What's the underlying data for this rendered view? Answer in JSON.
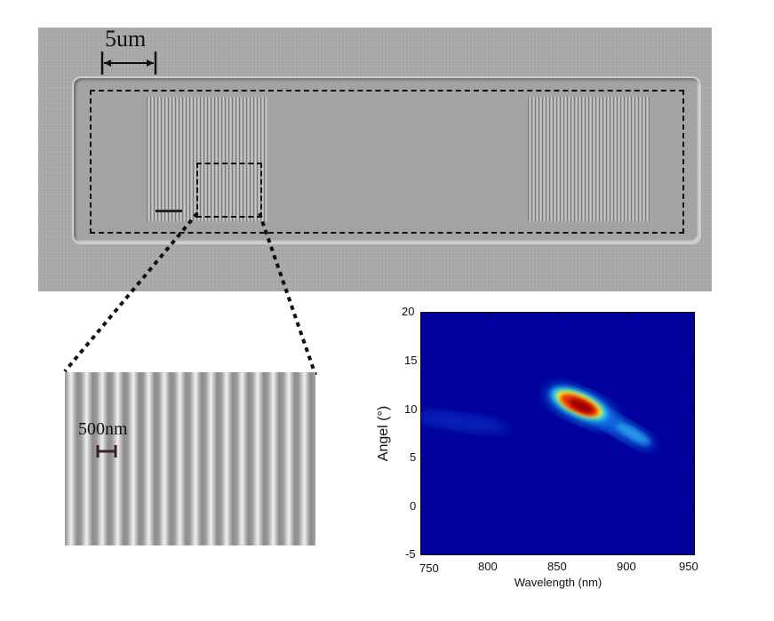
{
  "sem_overview": {
    "scale_label": "5um"
  },
  "sem_zoom": {
    "scale_label": "500nm"
  },
  "chart_data": {
    "type": "heatmap",
    "xlabel": "Wavelength (nm)",
    "ylabel": "Angel (°)",
    "xlim": [
      750,
      950
    ],
    "ylim": [
      -5,
      20
    ],
    "x_ticks": [
      "750",
      "800",
      "850",
      "900",
      "950"
    ],
    "y_ticks": [
      "20",
      "15",
      "10",
      "5",
      "0",
      "-5"
    ],
    "peak": {
      "wavelength": 862,
      "angle": 10.5,
      "intensity": 1.0
    },
    "features": [
      {
        "name": "main lobe",
        "wavelength_range": [
          845,
          880
        ],
        "angle_range": [
          8.5,
          12.5
        ]
      },
      {
        "name": "tail",
        "wavelength_range": [
          880,
          925
        ],
        "angle_range": [
          5.5,
          9
        ]
      },
      {
        "name": "faint band",
        "wavelength_range": [
          750,
          830
        ],
        "angle_range": [
          7,
          10
        ]
      }
    ],
    "colormap": "jet",
    "colors": {
      "background": "#00009c",
      "peak": "#a00000"
    }
  }
}
